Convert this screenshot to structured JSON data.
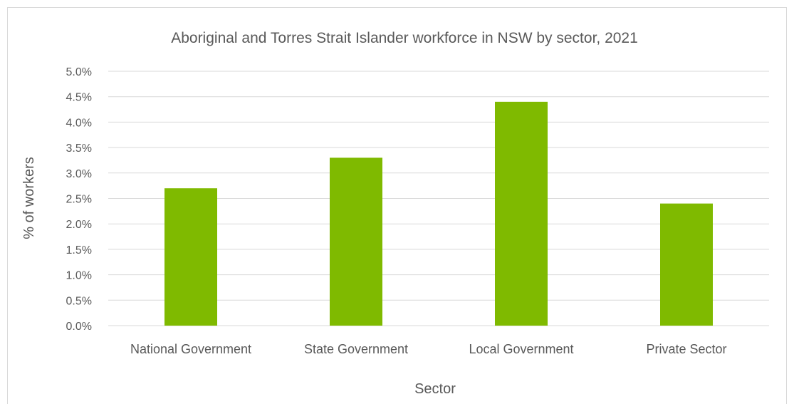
{
  "chart_data": {
    "type": "bar",
    "title": "Aboriginal and Torres Strait Islander workforce in NSW by sector, 2021",
    "xlabel": "Sector",
    "ylabel": "% of workers",
    "categories": [
      "National Government",
      "State Government",
      "Local Government",
      "Private Sector"
    ],
    "values": [
      2.7,
      3.3,
      4.4,
      2.4
    ],
    "ylim": [
      0,
      5
    ],
    "yticks": [
      "0.0%",
      "0.5%",
      "1.0%",
      "1.5%",
      "2.0%",
      "2.5%",
      "3.0%",
      "3.5%",
      "4.0%",
      "4.5%",
      "5.0%"
    ],
    "grid": true,
    "legend": "none",
    "bar_color": "#7fba00",
    "grid_color": "#d9d9d9"
  }
}
